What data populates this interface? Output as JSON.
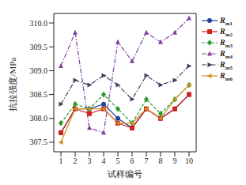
{
  "chart_data": {
    "type": "line",
    "x_label": "试样编号",
    "y_label": "抗拉强度/MPa",
    "x": [
      1,
      2,
      3,
      4,
      5,
      6,
      7,
      8,
      9,
      10
    ],
    "xlim": [
      0.5,
      10.5
    ],
    "xticks": [
      1,
      2,
      3,
      4,
      5,
      6,
      7,
      8,
      9,
      10
    ],
    "ylim": [
      307.3,
      310.2
    ],
    "yticks": [
      307.5,
      {
        "value": 308,
        "label": "308.0"
      },
      308.5,
      {
        "value": 309,
        "label": "309.0"
      },
      309.5,
      {
        "value": 310,
        "label": "310.0"
      }
    ],
    "grid": false,
    "legend": "right",
    "series": [
      {
        "name": "Rm1",
        "color": "#2040a0",
        "marker": "circle",
        "line_style": "solid",
        "values": [
          307.7,
          308.2,
          308.2,
          308.3,
          308.0,
          307.8,
          308.2,
          308.0,
          308.2,
          308.5
        ]
      },
      {
        "name": "Rm2",
        "color": "#d02020",
        "marker": "square",
        "line_style": "solid",
        "values": [
          307.7,
          308.2,
          308.1,
          308.2,
          307.9,
          307.8,
          308.2,
          308.0,
          308.2,
          308.5
        ]
      },
      {
        "name": "Rm3",
        "color": "#2a9a2a",
        "marker": "diamond",
        "line_style": "dashed",
        "values": [
          307.9,
          308.3,
          308.2,
          308.5,
          308.2,
          307.9,
          308.4,
          308.1,
          308.4,
          308.7
        ]
      },
      {
        "name": "Rm4",
        "color": "#8040a0",
        "marker": "triangle-up",
        "line_style": "dashdot",
        "values": [
          309.1,
          309.8,
          307.8,
          307.7,
          309.6,
          309.2,
          309.8,
          309.6,
          309.8,
          310.1
        ]
      },
      {
        "name": "Rm5",
        "color": "#404060",
        "marker": "triangle-right",
        "line_style": "dashdot",
        "values": [
          308.3,
          308.8,
          308.7,
          308.9,
          308.7,
          308.4,
          308.9,
          308.7,
          308.8,
          309.1
        ]
      },
      {
        "name": "Rm6",
        "color": "#d09020",
        "marker": "triangle-left",
        "line_style": "solid",
        "values": [
          307.5,
          308.2,
          308.2,
          308.2,
          307.9,
          307.9,
          308.2,
          308.0,
          308.4,
          308.7
        ]
      }
    ]
  }
}
